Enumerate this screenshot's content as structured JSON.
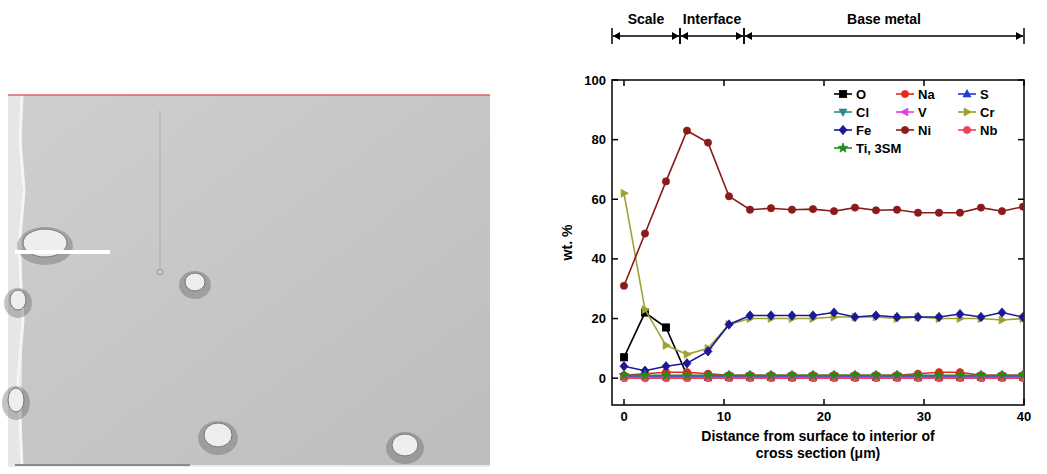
{
  "chart_data": {
    "type": "line",
    "x_label": "Distance from surface to interior of cross section (μm)",
    "y_label": "wt. %",
    "xlim": [
      -1.2,
      40
    ],
    "xticks": [
      0,
      10,
      20,
      30,
      40
    ],
    "ylim": [
      -9,
      100
    ],
    "yticks": [
      0,
      20,
      40,
      60,
      80,
      100
    ],
    "legend": "upper right",
    "regions": [
      {
        "label": "Scale",
        "start": -1.2,
        "end": 5.6
      },
      {
        "label": "Interface",
        "start": 5.6,
        "end": 12
      },
      {
        "label": "Base metal",
        "start": 12,
        "end": 40
      }
    ],
    "x": [
      0,
      2.1,
      4.2,
      6.3,
      8.4,
      10.5,
      12.6,
      14.7,
      16.8,
      18.9,
      21,
      23.1,
      25.2,
      27.3,
      29.4,
      31.5,
      33.6,
      35.7,
      37.8,
      39.9
    ],
    "series": [
      {
        "name": "O",
        "color": "#000000",
        "marker": "square",
        "values": [
          7,
          22,
          17,
          1,
          0.5,
          0.5,
          0.5,
          0.5,
          0.5,
          0.5,
          0.5,
          0.5,
          0.5,
          0.5,
          0.5,
          0.5,
          0.5,
          0.5,
          0.5,
          0.5
        ]
      },
      {
        "name": "Na",
        "color": "#e8271d",
        "marker": "circle",
        "values": [
          1,
          1.5,
          2,
          2,
          1.5,
          1,
          1,
          1,
          1,
          1,
          1,
          1,
          1,
          1,
          1.5,
          2,
          2,
          1,
          1,
          1
        ]
      },
      {
        "name": "S",
        "color": "#1f3cd6",
        "marker": "triangle-up",
        "values": [
          0.5,
          0.5,
          0.5,
          0.5,
          0.5,
          0.5,
          0.5,
          0.5,
          0.5,
          0.5,
          0.5,
          0.5,
          0.5,
          0.5,
          0.5,
          0.5,
          0.5,
          0.5,
          0.5,
          0.5
        ]
      },
      {
        "name": "Cl",
        "color": "#2a8a8a",
        "marker": "triangle-down",
        "values": [
          0.3,
          0.3,
          0.3,
          0.3,
          0.3,
          0.3,
          0.3,
          0.3,
          0.3,
          0.3,
          0.3,
          0.3,
          0.3,
          0.3,
          0.3,
          0.3,
          0.3,
          0.3,
          0.3,
          0.3
        ]
      },
      {
        "name": "V",
        "color": "#e040e0",
        "marker": "triangle-left",
        "values": [
          0.2,
          0.2,
          0.2,
          0.2,
          0.2,
          0.2,
          0.2,
          0.2,
          0.2,
          0.2,
          0.2,
          0.2,
          0.2,
          0.2,
          0.2,
          0.2,
          0.2,
          0.2,
          0.2,
          0.2
        ]
      },
      {
        "name": "Cr",
        "color": "#a0a030",
        "marker": "triangle-right",
        "values": [
          62,
          23,
          11,
          8,
          10,
          18,
          20,
          20,
          20,
          20,
          20.5,
          20.5,
          20.5,
          20,
          20.5,
          20,
          20,
          20,
          19.5,
          20
        ]
      },
      {
        "name": "Fe",
        "color": "#1a1a99",
        "marker": "diamond",
        "values": [
          4,
          2.5,
          4,
          5,
          9,
          18,
          21,
          21,
          21,
          21,
          22,
          20.5,
          21,
          20.5,
          20.5,
          20.5,
          21.5,
          20.5,
          22,
          20.5
        ]
      },
      {
        "name": "Ni",
        "color": "#8b1a1a",
        "marker": "circle",
        "values": [
          31,
          48.5,
          66,
          83,
          79,
          61,
          56.5,
          57,
          56.5,
          56.7,
          56,
          57.2,
          56.3,
          56.5,
          55.5,
          55.5,
          55.5,
          57.2,
          56,
          57.5
        ]
      },
      {
        "name": "Nb",
        "color": "#f04060",
        "marker": "circle",
        "values": [
          0,
          0,
          0,
          0,
          0,
          0,
          0,
          0,
          0,
          0,
          0,
          0,
          0,
          0,
          0,
          0,
          0,
          0,
          0,
          0
        ]
      },
      {
        "name": "Ti, 3SM",
        "color": "#228b22",
        "marker": "star",
        "values": [
          1,
          1,
          1,
          1,
          1,
          1,
          1,
          1,
          1,
          1,
          1,
          1,
          1,
          1,
          1,
          1,
          1,
          1,
          1,
          1
        ]
      }
    ]
  }
}
